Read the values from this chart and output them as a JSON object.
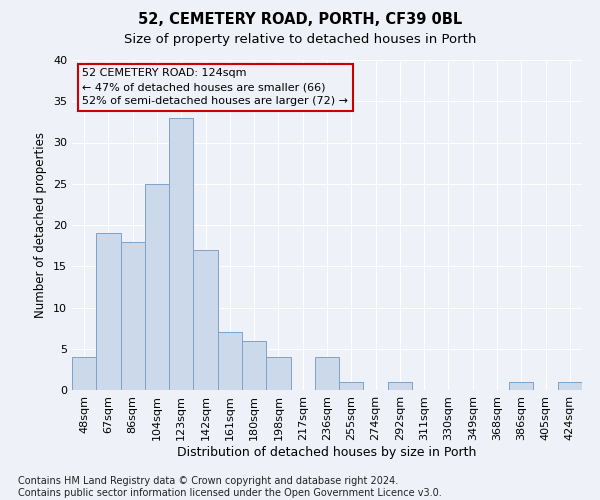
{
  "title1": "52, CEMETERY ROAD, PORTH, CF39 0BL",
  "title2": "Size of property relative to detached houses in Porth",
  "xlabel": "Distribution of detached houses by size in Porth",
  "ylabel": "Number of detached properties",
  "categories": [
    "48sqm",
    "67sqm",
    "86sqm",
    "104sqm",
    "123sqm",
    "142sqm",
    "161sqm",
    "180sqm",
    "198sqm",
    "217sqm",
    "236sqm",
    "255sqm",
    "274sqm",
    "292sqm",
    "311sqm",
    "330sqm",
    "349sqm",
    "368sqm",
    "386sqm",
    "405sqm",
    "424sqm"
  ],
  "values": [
    4,
    19,
    18,
    25,
    33,
    17,
    7,
    6,
    4,
    0,
    4,
    1,
    0,
    1,
    0,
    0,
    0,
    0,
    1,
    0,
    1
  ],
  "bar_color": "#ccd9ea",
  "bar_edge_color": "#7ba3c8",
  "ylim": [
    0,
    40
  ],
  "yticks": [
    0,
    5,
    10,
    15,
    20,
    25,
    30,
    35,
    40
  ],
  "annotation_line1": "52 CEMETERY ROAD: 124sqm",
  "annotation_line2": "← 47% of detached houses are smaller (66)",
  "annotation_line3": "52% of semi-detached houses are larger (72) →",
  "box_edge_color": "#cc0000",
  "footer": "Contains HM Land Registry data © Crown copyright and database right 2024.\nContains public sector information licensed under the Open Government Licence v3.0.",
  "bg_color": "#eef2f8",
  "grid_color": "#ffffff",
  "title1_fontsize": 10.5,
  "title2_fontsize": 9.5,
  "xlabel_fontsize": 9,
  "ylabel_fontsize": 8.5,
  "tick_fontsize": 8,
  "annotation_fontsize": 8,
  "footer_fontsize": 7
}
